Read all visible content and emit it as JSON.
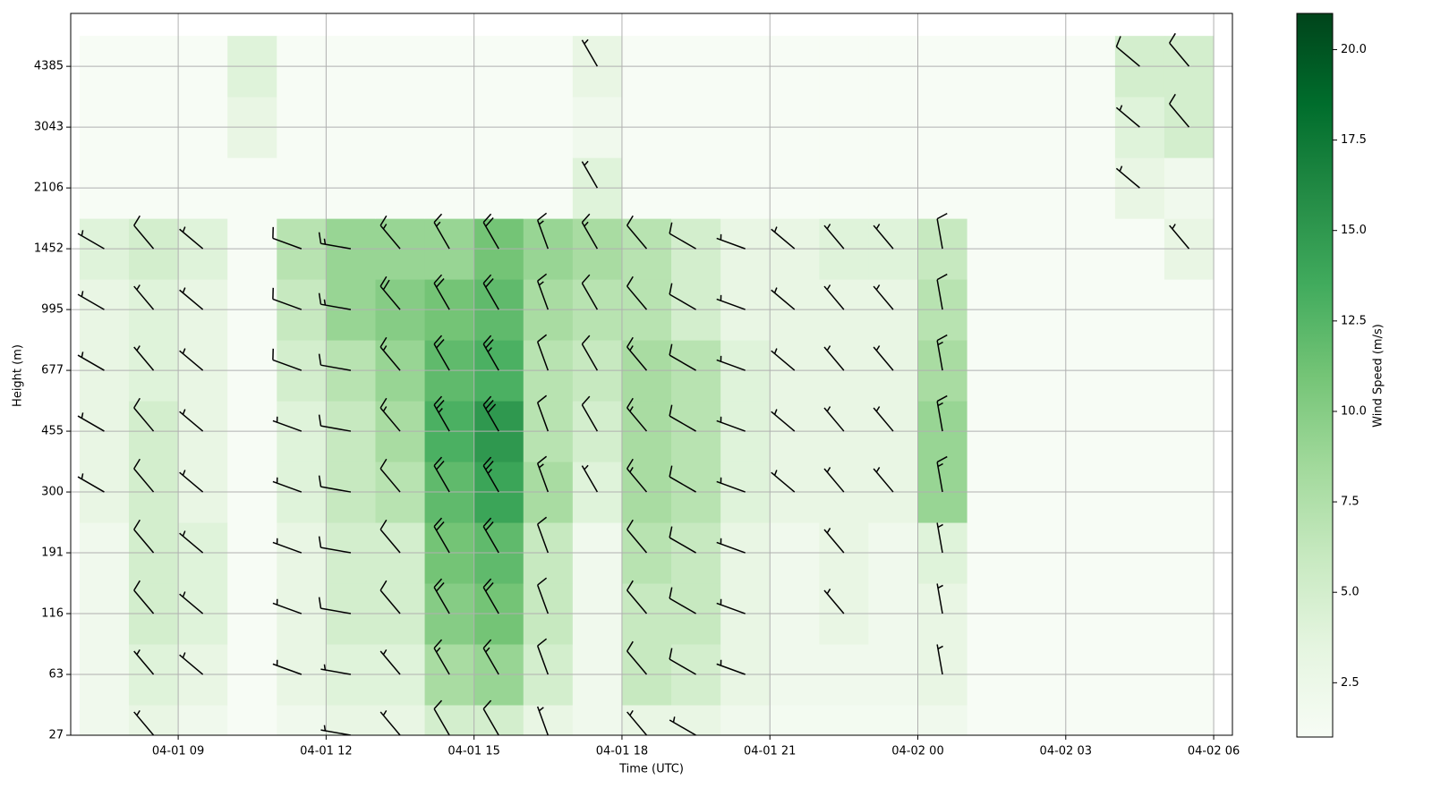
{
  "chart_data": {
    "type": "heatmap",
    "xlabel": "Time (UTC)",
    "ylabel": "Height (m)",
    "colorbar_label": "Wind Speed (m/s)",
    "colormap": [
      "#f7fcf5",
      "#e5f5e0",
      "#c7e9c0",
      "#a1d99b",
      "#74c476",
      "#41ab5d",
      "#238b45",
      "#006d2c",
      "#00441b"
    ],
    "clim": [
      1,
      21
    ],
    "cticks": [
      {
        "value": 2.5,
        "label": "2.5"
      },
      {
        "value": 5,
        "label": "5.0"
      },
      {
        "value": 7.5,
        "label": "7.5"
      },
      {
        "value": 10,
        "label": "10.0"
      },
      {
        "value": 12.5,
        "label": "12.5"
      },
      {
        "value": 15,
        "label": "15.0"
      },
      {
        "value": 17.5,
        "label": "17.5"
      },
      {
        "value": 20,
        "label": "20.0"
      }
    ],
    "xlim": [
      6.82,
      30.38
    ],
    "xticks": [
      {
        "value": 9,
        "label": "04-01 09"
      },
      {
        "value": 12,
        "label": "04-01 12"
      },
      {
        "value": 15,
        "label": "04-01 15"
      },
      {
        "value": 18,
        "label": "04-01 18"
      },
      {
        "value": 21,
        "label": "04-01 21"
      },
      {
        "value": 24,
        "label": "04-02 00"
      },
      {
        "value": 27,
        "label": "04-02 03"
      },
      {
        "value": 30,
        "label": "04-02 06"
      }
    ],
    "ylim": [
      0,
      11.87
    ],
    "yticks": [
      {
        "value": 0,
        "label": "27"
      },
      {
        "value": 1,
        "label": "63"
      },
      {
        "value": 2,
        "label": "116"
      },
      {
        "value": 3,
        "label": "191"
      },
      {
        "value": 4,
        "label": "300"
      },
      {
        "value": 5,
        "label": "455"
      },
      {
        "value": 6,
        "label": "677"
      },
      {
        "value": 7,
        "label": "995"
      },
      {
        "value": 8,
        "label": "1452"
      },
      {
        "value": 9,
        "label": "2106"
      },
      {
        "value": 10,
        "label": "3043"
      },
      {
        "value": 11,
        "label": "4385"
      }
    ],
    "grid": true,
    "x": [
      7.5,
      8.5,
      9.5,
      10.5,
      11.5,
      12.5,
      13.5,
      14.5,
      15.5,
      16.5,
      17.5,
      18.5,
      19.5,
      20.5,
      21.5,
      22.5,
      23.5,
      24.5,
      25.5,
      26.5,
      27.5,
      28.5,
      29.5
    ],
    "y": [
      0,
      1,
      2,
      3,
      4,
      5,
      6,
      7,
      8,
      9,
      10,
      11
    ],
    "z": [
      [
        2,
        3,
        2,
        1,
        2,
        3,
        3,
        5,
        5,
        3,
        2,
        3,
        3,
        2,
        1.5,
        1.5,
        1.5,
        2,
        1,
        1,
        1,
        1,
        1
      ],
      [
        2,
        4,
        3,
        1,
        3,
        4,
        4,
        8,
        9,
        5,
        2,
        6,
        5,
        3,
        2,
        2,
        2,
        3,
        1,
        1,
        1,
        1,
        1
      ],
      [
        2,
        5,
        4,
        1,
        3,
        5,
        5,
        10,
        11,
        6,
        2,
        6,
        6,
        3,
        2,
        3,
        2,
        3,
        1,
        1,
        1,
        1,
        1
      ],
      [
        2,
        5,
        4,
        1,
        3,
        5,
        5,
        11,
        12,
        6,
        2,
        7,
        6,
        3,
        2,
        3,
        2,
        4,
        1,
        1,
        1,
        1,
        1
      ],
      [
        3,
        5,
        3,
        1,
        4,
        6,
        7,
        12,
        14,
        8,
        4,
        8,
        7,
        4,
        3,
        3,
        3,
        9,
        1,
        1,
        1,
        1,
        1
      ],
      [
        3,
        5,
        3,
        1,
        4,
        6,
        8,
        13,
        15,
        7,
        5,
        8,
        7,
        4,
        3,
        3,
        3,
        9,
        1,
        1,
        1,
        1,
        1
      ],
      [
        3,
        4,
        3,
        1,
        5,
        7,
        9,
        12,
        13,
        7,
        6,
        8,
        7,
        4,
        3,
        3,
        3,
        8,
        1,
        1,
        1,
        1,
        1
      ],
      [
        3,
        4,
        3,
        1,
        6,
        9,
        10,
        11,
        12,
        8,
        7,
        7,
        5,
        3,
        3,
        3,
        3,
        7,
        1,
        1,
        1,
        1,
        1
      ],
      [
        4,
        5,
        4,
        1,
        7,
        9,
        9,
        9,
        11,
        9,
        8,
        7,
        5,
        3,
        3,
        4,
        4,
        6,
        1,
        1,
        1,
        1,
        3
      ],
      [
        1,
        1,
        1,
        1,
        1,
        1,
        1,
        1,
        1,
        1,
        4,
        1,
        1,
        1,
        1,
        1,
        1,
        1,
        1,
        1,
        1,
        3,
        2
      ],
      [
        1,
        1,
        1,
        3,
        1,
        1,
        1,
        1,
        1,
        1,
        2,
        1,
        1,
        1,
        1,
        1,
        1,
        1,
        1,
        1,
        1,
        4,
        5
      ],
      [
        1,
        1,
        1,
        4,
        1,
        1,
        1,
        1,
        1,
        1,
        3,
        1,
        1,
        1,
        1,
        1,
        1,
        1,
        1,
        1,
        1,
        5,
        5
      ]
    ],
    "direction": [
      300,
      320,
      310,
      null,
      290,
      280,
      320,
      330,
      330,
      340,
      330,
      320,
      300,
      290,
      310,
      320,
      320,
      350,
      null,
      null,
      null,
      310,
      320
    ]
  }
}
